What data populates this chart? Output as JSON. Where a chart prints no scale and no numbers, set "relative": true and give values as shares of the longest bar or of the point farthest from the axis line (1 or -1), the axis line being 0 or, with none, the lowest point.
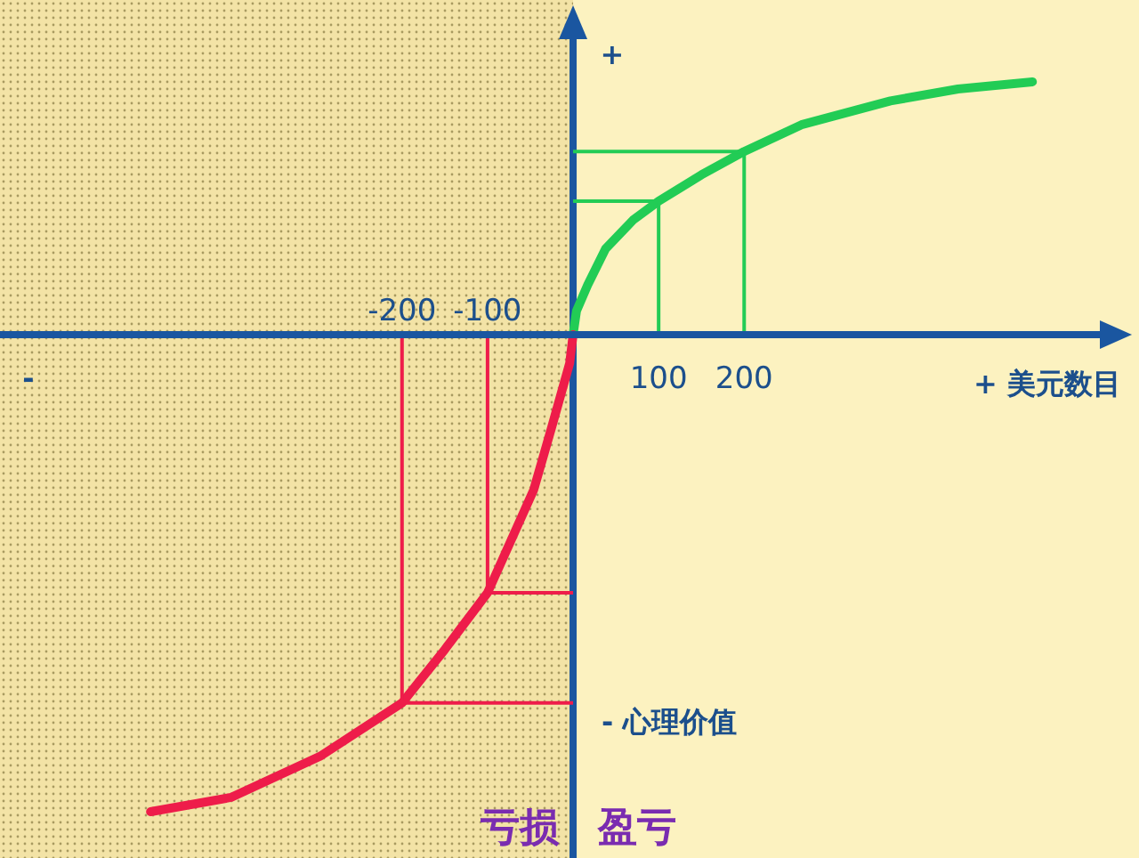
{
  "chart_data": {
    "type": "line",
    "relative": true,
    "xlabel": "+ 美元数目",
    "ylabel": "- 心理价值",
    "xlim": [
      -670,
      620
    ],
    "xticks": [
      100,
      200
    ],
    "x2lim": [
      -670,
      620
    ],
    "x2ticks": [
      -200,
      -100
    ],
    "legend": false,
    "bands": [
      {
        "axis": "x",
        "from": -670,
        "to": 0,
        "color": "#f3e3a6"
      }
    ],
    "ref_lines": [
      {
        "axis": "x",
        "value": 0,
        "color": "#1a56a0"
      }
    ],
    "annotations": [
      "+",
      "-",
      "亏损",
      "盈亏"
    ],
    "series": [
      {
        "color": "#22cc55",
        "x": [
          0,
          4,
          17,
          38,
          70,
          100,
          150,
          200,
          267,
          371,
          450,
          537
        ],
        "values": [
          0,
          0.05,
          0.104,
          0.18,
          0.24,
          0.28,
          0.335,
          0.384,
          0.44,
          0.49,
          0.515,
          0.53
        ]
      },
      {
        "color": "#ee1c4a",
        "x": [
          -494,
          -400,
          -296,
          -200,
          -150,
          -100,
          -46,
          -25,
          -4,
          0
        ],
        "values": [
          -1,
          -0.97,
          -0.884,
          -0.772,
          -0.66,
          -0.541,
          -0.325,
          -0.194,
          -0.06,
          0
        ]
      },
      {
        "color": "#22cc55",
        "x": [
          100,
          100,
          0
        ],
        "values": [
          0,
          0.28,
          0.28
        ]
      },
      {
        "color": "#22cc55",
        "x": [
          200,
          200,
          0
        ],
        "values": [
          0,
          0.384,
          0.384
        ]
      },
      {
        "color": "#ee1c4a",
        "x": [
          -100,
          -100,
          0
        ],
        "values": [
          0,
          -0.541,
          -0.541
        ]
      },
      {
        "color": "#ee1c4a",
        "x": [
          -200,
          -200,
          0
        ],
        "values": [
          0,
          -0.772,
          -0.772
        ]
      }
    ]
  }
}
